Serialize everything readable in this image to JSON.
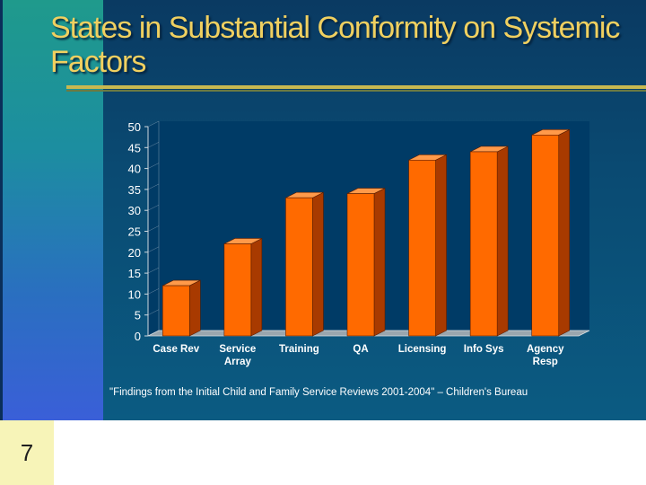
{
  "slide": {
    "title": "States in Substantial Conformity on Systemic Factors",
    "page_number": "7",
    "source_note": "\"Findings from the Initial Child and Family Service Reviews 2001-2004\" – Children's Bureau"
  },
  "colors": {
    "bar_front": "#ff6a00",
    "bar_side": "#a83a00",
    "bar_top": "#ff9a4a",
    "chart_bg": "#003b66",
    "axis": "#cfd8df"
  },
  "chart_data": {
    "type": "bar",
    "title": "",
    "xlabel": "",
    "ylabel": "",
    "categories": [
      [
        "Case Rev"
      ],
      [
        "Service",
        "Array"
      ],
      [
        "Training"
      ],
      [
        "QA"
      ],
      [
        "Licensing"
      ],
      [
        "Info Sys"
      ],
      [
        "Agency",
        "Resp"
      ]
    ],
    "values": [
      12,
      22,
      33,
      34,
      42,
      44,
      48
    ],
    "ylim": [
      0,
      50
    ],
    "yticks": [
      "0",
      "5",
      "10",
      "15",
      "20",
      "25",
      "30",
      "35",
      "40",
      "45",
      "50"
    ],
    "grid": false,
    "legend": "none",
    "style": "3d"
  }
}
